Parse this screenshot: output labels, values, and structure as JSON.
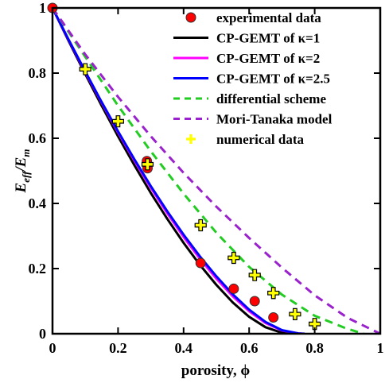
{
  "chart_data": {
    "type": "line",
    "xlabel": "porosity, ϕ",
    "ylabel": {
      "base": "E",
      "base_sub": "eff",
      "slash": "/E",
      "den_sub": "m"
    },
    "xlim": [
      0,
      1
    ],
    "ylim": [
      0,
      1
    ],
    "xticks": [
      "0",
      "0.2",
      "0.4",
      "0.6",
      "0.8",
      "1"
    ],
    "yticks": [
      "0",
      "0.2",
      "0.4",
      "0.6",
      "0.8",
      "1"
    ],
    "grid": false,
    "legend_position": "top-right",
    "series": [
      {
        "name": "experimental data",
        "kind": "marker-circle",
        "color": "#ff0000",
        "x": [
          0,
          0.288,
          0.29,
          0.452,
          0.553,
          0.617,
          0.674
        ],
        "y": [
          1.0,
          0.53,
          0.508,
          0.217,
          0.138,
          0.1,
          0.05
        ]
      },
      {
        "name": "CP-GEMT of κ=1",
        "kind": "line",
        "color": "#000000",
        "style": "solid",
        "x": [
          0,
          0.05,
          0.1,
          0.15,
          0.2,
          0.25,
          0.3,
          0.35,
          0.4,
          0.45,
          0.5,
          0.55,
          0.6,
          0.65,
          0.7,
          0.75
        ],
        "y": [
          1.0,
          0.897,
          0.797,
          0.7,
          0.606,
          0.517,
          0.432,
          0.353,
          0.279,
          0.211,
          0.15,
          0.096,
          0.052,
          0.02,
          0.003,
          0.0
        ]
      },
      {
        "name": "CP-GEMT of κ=2",
        "kind": "line",
        "color": "#ff00ff",
        "style": "solid",
        "x": [
          0,
          0.05,
          0.1,
          0.15,
          0.2,
          0.25,
          0.3,
          0.35,
          0.4,
          0.45,
          0.5,
          0.55,
          0.6,
          0.65,
          0.7,
          0.75,
          0.765
        ],
        "y": [
          1.0,
          0.9,
          0.803,
          0.709,
          0.618,
          0.531,
          0.448,
          0.37,
          0.297,
          0.23,
          0.169,
          0.115,
          0.069,
          0.033,
          0.01,
          0.001,
          0.0
        ]
      },
      {
        "name": "CP-GEMT of κ=2.5",
        "kind": "line",
        "color": "#0000ff",
        "style": "solid",
        "x": [
          0,
          0.05,
          0.1,
          0.15,
          0.2,
          0.25,
          0.3,
          0.35,
          0.4,
          0.45,
          0.5,
          0.55,
          0.6,
          0.65,
          0.7,
          0.75,
          0.77
        ],
        "y": [
          1.0,
          0.901,
          0.805,
          0.711,
          0.621,
          0.535,
          0.453,
          0.376,
          0.304,
          0.237,
          0.176,
          0.121,
          0.074,
          0.036,
          0.011,
          0.001,
          0.0
        ]
      },
      {
        "name": "differential scheme",
        "kind": "line",
        "color": "#22cc22",
        "style": "dashed",
        "x": [
          0,
          0.1,
          0.2,
          0.3,
          0.4,
          0.5,
          0.6,
          0.7,
          0.8,
          0.9,
          0.95
        ],
        "y": [
          1.0,
          0.85,
          0.7,
          0.56,
          0.43,
          0.31,
          0.205,
          0.12,
          0.055,
          0.015,
          0.0
        ]
      },
      {
        "name": "Mori-Tanaka model",
        "kind": "line",
        "color": "#9922cc",
        "style": "dashed",
        "x": [
          0,
          0.1,
          0.2,
          0.3,
          0.4,
          0.5,
          0.6,
          0.7,
          0.8,
          0.9,
          1.0
        ],
        "y": [
          1.0,
          0.857,
          0.727,
          0.606,
          0.494,
          0.39,
          0.294,
          0.203,
          0.118,
          0.049,
          0.0
        ]
      },
      {
        "name": "numerical data",
        "kind": "marker-plus",
        "color": "#ffff00",
        "x": [
          0.1,
          0.2,
          0.29,
          0.452,
          0.553,
          0.617,
          0.674,
          0.74,
          0.8
        ],
        "y": [
          0.812,
          0.652,
          0.52,
          0.333,
          0.233,
          0.18,
          0.125,
          0.06,
          0.03
        ]
      }
    ]
  }
}
